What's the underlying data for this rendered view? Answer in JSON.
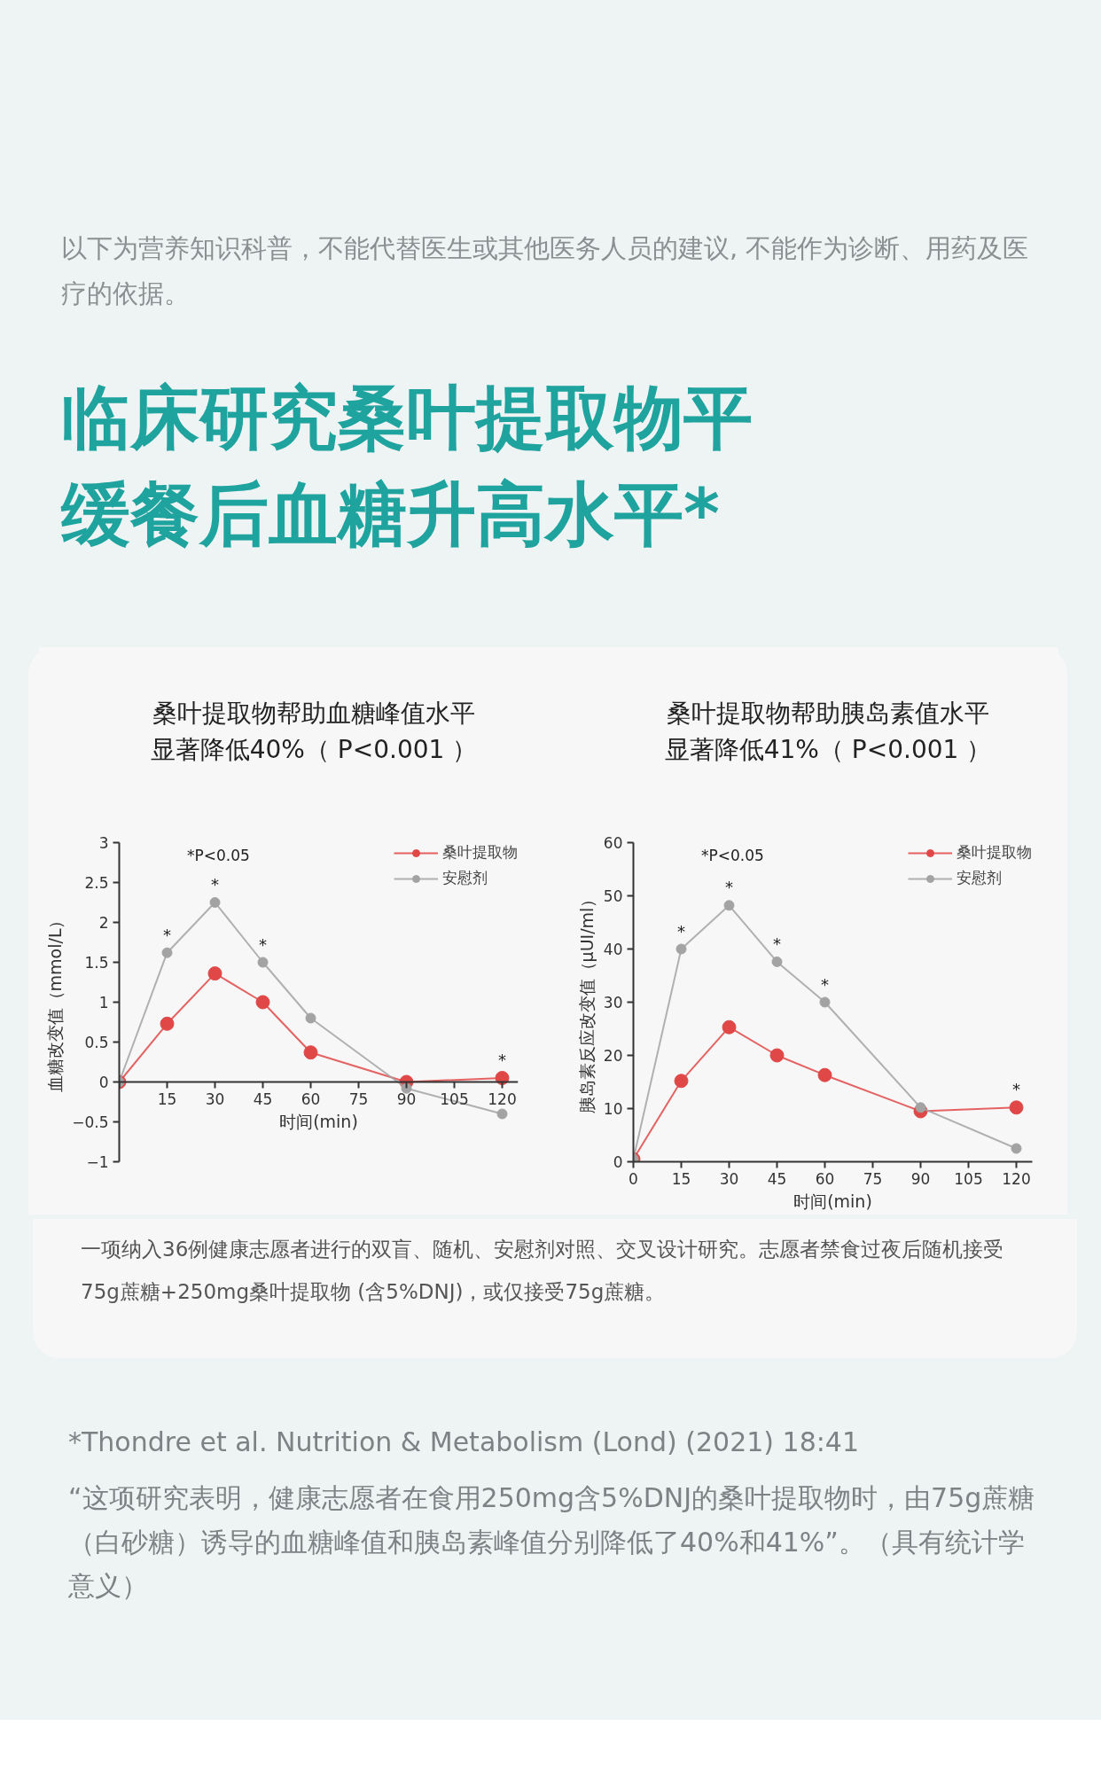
{
  "chart_data": [
    {
      "type": "other",
      "title": "临床研究桑叶提取物平缓餐后血糖升高水平*",
      "annotations": [
        "以下为营养知识科普，不能代替医生或其他医务人员的建议, 不能作为诊断、用药及医疗的依据。"
      ]
    },
    {
      "type": "line",
      "title": "桑叶提取物帮助血糖峰值水平显著降低40%（ P<0.001 ）",
      "xlabel": "时间(min)",
      "ylabel": "血糖改变值（mmol/L）",
      "x": [
        0,
        15,
        30,
        45,
        60,
        90,
        120
      ],
      "xlim": [
        0,
        125
      ],
      "xticks": [
        {
          "value": 0,
          "label": null
        },
        15,
        30,
        45,
        60,
        75,
        90,
        105,
        120
      ],
      "ylim": [
        -1,
        3
      ],
      "yticks": [
        -1,
        -0.5,
        0,
        0.5,
        1,
        1.5,
        2,
        2.5,
        3
      ],
      "grid": false,
      "legend": "top right",
      "marker": "circle",
      "line_style": "solid",
      "series": [
        {
          "name": "桑叶提取物",
          "color": "#e04848",
          "values": [
            0,
            0.73,
            1.36,
            1.0,
            0.37,
            0.0,
            0.05
          ]
        },
        {
          "name": "安慰剂",
          "color": "#a3a3a3",
          "values": [
            0,
            1.62,
            2.25,
            1.5,
            0.8,
            -0.08,
            -0.4
          ]
        }
      ],
      "annotations": [
        "*P<0.05",
        {
          "text": "*",
          "x": 15,
          "y": 1.62
        },
        {
          "text": "*",
          "x": 30,
          "y": 2.25
        },
        {
          "text": "*",
          "x": 45,
          "y": 1.5
        },
        {
          "text": "*",
          "x": 120,
          "y": 0.05
        }
      ]
    },
    {
      "type": "line",
      "title": "桑叶提取物帮助胰岛素值水平显著降低41%（ P<0.001 ）",
      "xlabel": "时间(min)",
      "ylabel": "胰岛素反应改变值（μUI/ml）",
      "x": [
        0,
        15,
        30,
        45,
        60,
        90,
        120
      ],
      "xlim": [
        0,
        125
      ],
      "xticks": [
        0,
        15,
        30,
        45,
        60,
        75,
        90,
        105,
        120
      ],
      "ylim": [
        0,
        60
      ],
      "yticks": [
        0,
        10,
        20,
        30,
        40,
        50,
        60
      ],
      "grid": false,
      "legend": "top right",
      "marker": "circle",
      "line_style": "solid",
      "series": [
        {
          "name": "桑叶提取物",
          "color": "#e04848",
          "values": [
            0.5,
            15.2,
            25.3,
            20,
            16.3,
            9.5,
            10.2
          ]
        },
        {
          "name": "安慰剂",
          "color": "#a3a3a3",
          "values": [
            0.5,
            40,
            48.2,
            37.6,
            30,
            10.2,
            2.5
          ]
        }
      ],
      "annotations": [
        "*P<0.05",
        {
          "text": "*",
          "x": 15,
          "y": 40
        },
        {
          "text": "*",
          "x": 30,
          "y": 48.2
        },
        {
          "text": "*",
          "x": 45,
          "y": 37.6
        },
        {
          "text": "*",
          "x": 60,
          "y": 30
        },
        {
          "text": "*",
          "x": 120,
          "y": 10.2
        }
      ]
    },
    {
      "type": "other",
      "annotations": [
        "一项纳入36例健康志愿者进行的双盲、随机、安慰剂对照、交叉设计研究。志愿者禁食过夜后随机接受75g蔗糖+250mg桑叶提取物 (含5%DNJ)，或仅接受75g蔗糖。",
        "*Thondre et al. Nutrition & Metabolism (Lond) (2021) 18:41",
        "“这项研究表明，健康志愿者在食用250mg含5%DNJ的桑叶提取物时，由75g蔗糖（白砂糖）诱导的血糖峰值和胰岛素峰值分别降低了40%和41%”。（具有统计学意义）"
      ]
    }
  ]
}
